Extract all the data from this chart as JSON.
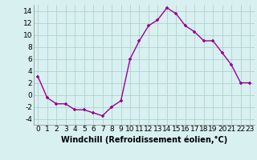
{
  "x": [
    0,
    1,
    2,
    3,
    4,
    5,
    6,
    7,
    8,
    9,
    10,
    11,
    12,
    13,
    14,
    15,
    16,
    17,
    18,
    19,
    20,
    21,
    22,
    23
  ],
  "y": [
    3,
    -0.5,
    -1.5,
    -1.5,
    -2.5,
    -2.5,
    -3,
    -3.5,
    -2,
    -1,
    6,
    9,
    11.5,
    12.5,
    14.5,
    13.5,
    11.5,
    10.5,
    9,
    9,
    7,
    5,
    2,
    2
  ],
  "line_color": "#990099",
  "marker": "+",
  "bg_color": "#d8f0f0",
  "grid_color": "#b0d0d0",
  "xlabel": "Windchill (Refroidissement éolien,°C)",
  "xlabel_fontsize": 7,
  "tick_fontsize": 6.5,
  "ylim": [
    -5,
    15
  ],
  "xlim": [
    -0.5,
    23.5
  ],
  "yticks": [
    -4,
    -2,
    0,
    2,
    4,
    6,
    8,
    10,
    12,
    14
  ],
  "xticks": [
    0,
    1,
    2,
    3,
    4,
    5,
    6,
    7,
    8,
    9,
    10,
    11,
    12,
    13,
    14,
    15,
    16,
    17,
    18,
    19,
    20,
    21,
    22,
    23
  ]
}
